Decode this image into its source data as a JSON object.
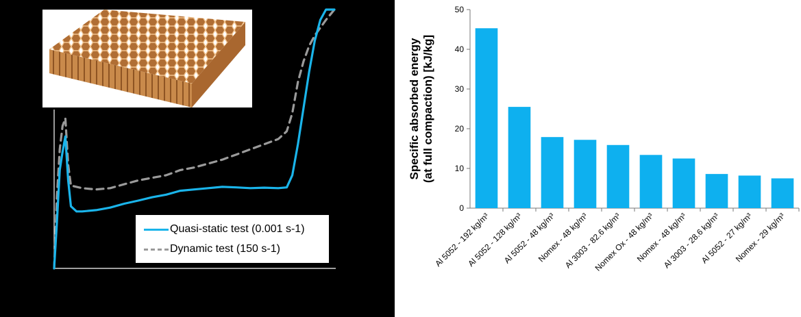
{
  "colors": {
    "quasi_static": "#1ab4ea",
    "dynamic": "#9a9a9a",
    "bar": "#0eb0ef",
    "left_background": "#000000",
    "honeycomb": "#c98a4b"
  },
  "chart_data": [
    {
      "type": "line",
      "title": "",
      "xlabel": "",
      "ylabel": "",
      "x": [
        0.0,
        0.01,
        0.02,
        0.03,
        0.04,
        0.05,
        0.06,
        0.08,
        0.1,
        0.15,
        0.2,
        0.25,
        0.3,
        0.35,
        0.4,
        0.45,
        0.5,
        0.55,
        0.6,
        0.65,
        0.7,
        0.75,
        0.8,
        0.83,
        0.85,
        0.87,
        0.89,
        0.91,
        0.93,
        0.95,
        0.97,
        1.0
      ],
      "xlim": [
        0,
        1
      ],
      "ylim": [
        0,
        1
      ],
      "legend_position": "bottom-right",
      "series": [
        {
          "name": "Quasi-static test (0.001 s-1)",
          "color": "quasi_static",
          "style": "solid",
          "values": [
            0.0,
            0.18,
            0.38,
            0.45,
            0.51,
            0.34,
            0.24,
            0.22,
            0.22,
            0.225,
            0.235,
            0.25,
            0.262,
            0.275,
            0.285,
            0.3,
            0.305,
            0.31,
            0.315,
            0.313,
            0.31,
            0.312,
            0.31,
            0.313,
            0.36,
            0.48,
            0.62,
            0.76,
            0.88,
            0.96,
            1.0,
            1.0
          ]
        },
        {
          "name": "Dynamic test (150 s-1)",
          "color": "dynamic",
          "style": "dashed",
          "values": [
            0.0,
            0.28,
            0.46,
            0.55,
            0.58,
            0.4,
            0.32,
            0.315,
            0.31,
            0.305,
            0.31,
            0.325,
            0.34,
            0.35,
            0.36,
            0.38,
            0.39,
            0.405,
            0.42,
            0.44,
            0.46,
            0.48,
            0.5,
            0.53,
            0.6,
            0.72,
            0.8,
            0.86,
            0.9,
            0.93,
            0.96,
            1.0
          ]
        }
      ]
    },
    {
      "type": "bar",
      "title": "",
      "xlabel": "",
      "ylabel": "Specific absorbed energy\n(at full compaction) [kJ/kg]",
      "categories": [
        "Al 5052 - 192 kg/m³",
        "Al 5052 - 128 kg/m³",
        "Al 5052 - 48 kg/m³",
        "Nomex - 48 kg/m³",
        "Al 3003 - 82.6 kg/m³",
        "Nomex Ox - 48 kg/m³",
        "Nomex - 48 kg/m³",
        "Al 3003 - 28.6 kg/m³",
        "Al 5052 - 27 kg/m³",
        "Nomex - 29 kg/m³"
      ],
      "values": [
        45.3,
        25.5,
        17.9,
        17.2,
        15.9,
        13.4,
        12.5,
        8.6,
        8.2,
        7.5
      ],
      "ylim": [
        0,
        50
      ],
      "yticks": [
        "0",
        "10",
        "20",
        "30",
        "40",
        "50"
      ],
      "grid": false,
      "color": "bar"
    }
  ]
}
